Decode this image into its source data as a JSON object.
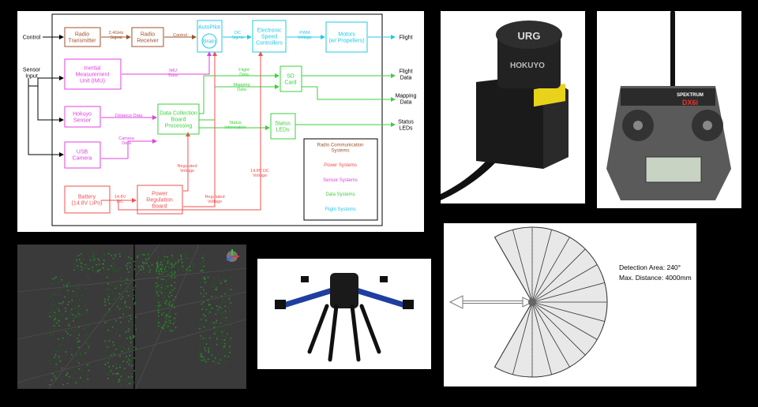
{
  "block_diagram": {
    "inputs": {
      "control": "Control",
      "sensor": "Sensor\nInput"
    },
    "blocks": {
      "radio_tx": "Radio\nTransmitter",
      "radio_rx": "Radio\nReceiver",
      "autopilot": "AutoPilot",
      "brain": "Brain",
      "esc": "Electronic\nSpeed\nControllers",
      "motors": "Motors\n(w/ Propellers)",
      "imu": "Inertial\nMeasurement\nUnit (IMU)",
      "sd_card": "SD\nCard",
      "hokuyo": "Hokuyo\nSensor",
      "dcb": "Data Collection\nBoard\nProcessing",
      "status_leds": "Status\nLEDs",
      "usb_camera": "USB\nCamera",
      "battery": "Battery\n(14.8V LiPo)",
      "power_reg": "Power\nRegulation\nBoard"
    },
    "edge_labels": {
      "signal_24": "2.4GHz\nSignal",
      "control": "Control",
      "dc_signal": "DC\nSignal",
      "pwm_voltage": "PWM\nVoltage",
      "imu_data": "IMU\nData",
      "flight_data": "Flight\nData",
      "mapping_data": "Mapping\nData",
      "distance_data": "Distance Data",
      "status_info": "Status\nInformation",
      "camera_data": "Camera\nData",
      "regulated_1": "Regulated\nVoltage",
      "dc_148": "14.8V DC\nVoltage",
      "dc_148_short": "14.8V\nDC",
      "regulated_2": "Regulated\nVoltage"
    },
    "outputs": {
      "flight": "Flight",
      "flight_data": "Flight\nData",
      "mapping_data": "Mapping\nData",
      "status_leds": "Status\nLEDs"
    },
    "legend": {
      "title": "Radio Communication\nSystems",
      "power": "Power Systems",
      "sensor": "Sensor Systems",
      "data": "Data Systems",
      "flight": "Flight Systems"
    },
    "colors": {
      "radio": "#a0522d",
      "flight": "#22c8e6",
      "sensor": "#e040e0",
      "data": "#3ecf3e",
      "power": "#f05050"
    }
  },
  "lidar_photo": {
    "label_top": "URG",
    "label_side": "HOKUYO"
  },
  "transmitter_photo": {
    "brand": "SPEKTRUM",
    "model": "DX6i"
  },
  "detection_figure": {
    "area": "Detection Area: 240°",
    "distance": "Max. Distance: 4000mm"
  }
}
